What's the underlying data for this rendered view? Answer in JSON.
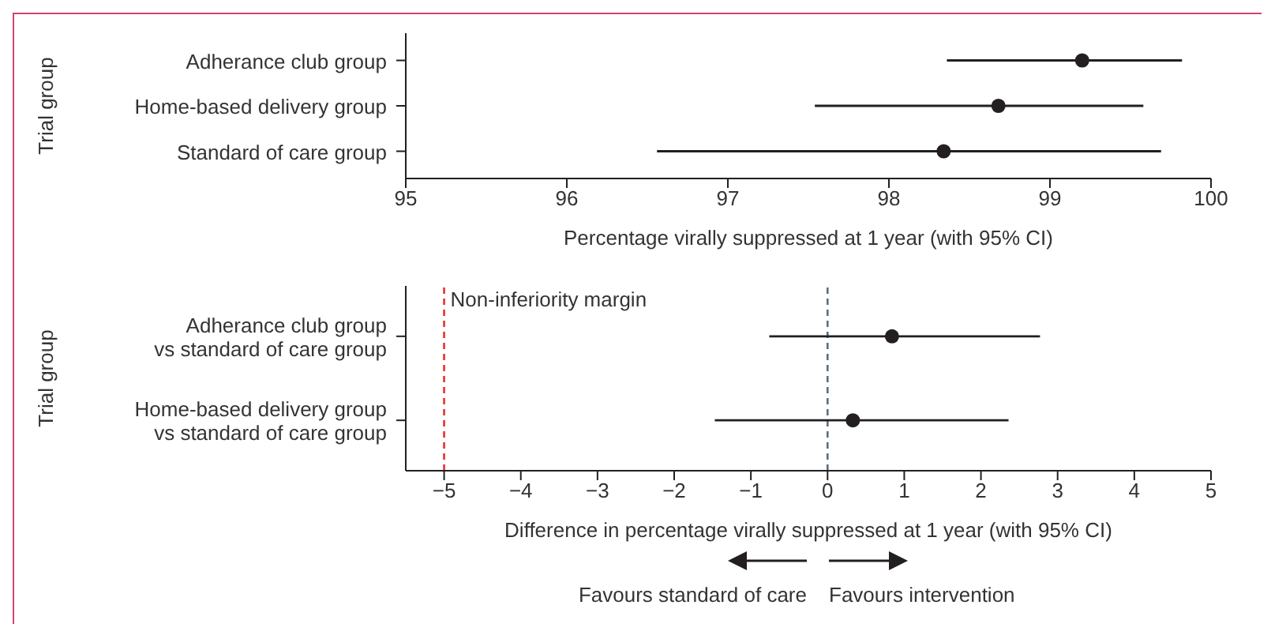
{
  "chart_data": [
    {
      "type": "scatter",
      "orientation": "horizontal",
      "grid": false,
      "ylabel": "Trial group",
      "xlabel": "Percentage virally suppressed at 1 year (with 95% CI)",
      "categories": [
        "Adherance club group",
        "Home-based delivery group",
        "Standard of care group"
      ],
      "color": "#231f20",
      "values": [
        99.2,
        98.68,
        98.34
      ],
      "errors": [
        [
          98.36,
          99.82
        ],
        [
          97.54,
          99.58
        ],
        [
          96.56,
          99.69
        ]
      ],
      "xlim": [
        95,
        100
      ],
      "xticks": [
        95,
        96,
        97,
        98,
        99,
        100
      ],
      "marker": "circle"
    },
    {
      "type": "scatter",
      "orientation": "horizontal",
      "grid": false,
      "ylabel": "Trial group",
      "xlabel": "Difference in percentage virally suppressed at 1 year (with 95% CI)",
      "categories": [
        "Adherance club group\nvs standard of care group",
        "Home-based delivery group\nvs standard of care group"
      ],
      "color": "#231f20",
      "values": [
        0.84,
        0.33
      ],
      "errors": [
        [
          -0.76,
          2.77
        ],
        [
          -1.47,
          2.36
        ]
      ],
      "xlim": [
        -5.5,
        5
      ],
      "xticks": [
        {
          "value": -5,
          "label": "−5"
        },
        {
          "value": -4,
          "label": "−4"
        },
        {
          "value": -3,
          "label": "−3"
        },
        {
          "value": -2,
          "label": "−2"
        },
        {
          "value": -1,
          "label": "−1"
        },
        0,
        1,
        2,
        3,
        4,
        5
      ],
      "ref_lines": [
        {
          "axis": "x",
          "value": -5,
          "label": "Non-inferiority margin",
          "color": "#e8312f",
          "line_style": "dashed"
        },
        {
          "axis": "x",
          "value": 0,
          "color": "#5a6e7e",
          "line_style": "dashed"
        }
      ],
      "annotations": [
        "Favours standard of care",
        "Favours intervention"
      ],
      "marker": "circle"
    }
  ]
}
